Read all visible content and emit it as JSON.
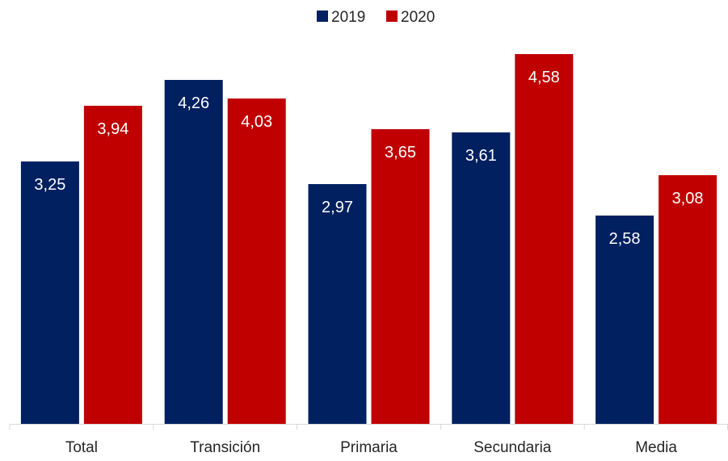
{
  "chart_data": {
    "type": "bar",
    "categories": [
      "Total",
      "Transición",
      "Primaria",
      "Secundaria",
      "Media"
    ],
    "series": [
      {
        "name": "2019",
        "color": "#002060",
        "values": [
          3.25,
          4.26,
          2.97,
          3.61,
          2.58
        ],
        "labels": [
          "3,25",
          "4,26",
          "2,97",
          "3,61",
          "2,58"
        ]
      },
      {
        "name": "2020",
        "color": "#C00000",
        "values": [
          3.94,
          4.03,
          3.65,
          4.58,
          3.08
        ],
        "labels": [
          "3,94",
          "4,03",
          "3,65",
          "4,58",
          "3,08"
        ]
      }
    ],
    "ylim": [
      0,
      4.9
    ],
    "grid": false,
    "legend": "top-center",
    "axis_color": "#D9D9D9"
  }
}
